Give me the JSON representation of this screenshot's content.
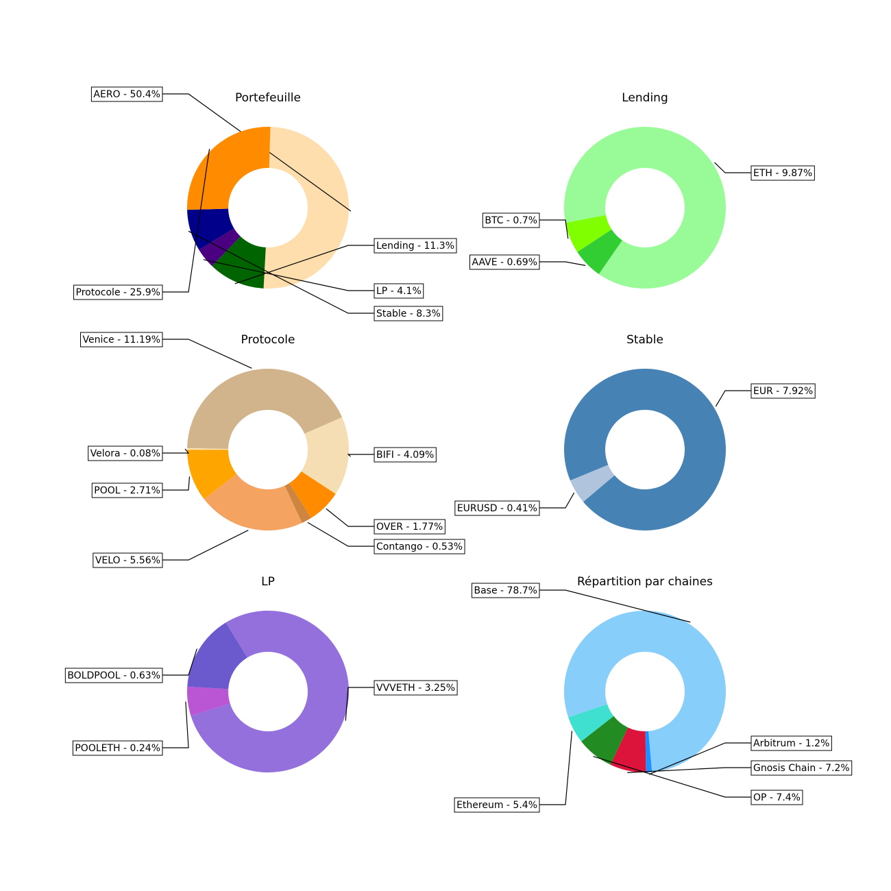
{
  "chart_data": [
    {
      "type": "donut",
      "title": "Portefeuille",
      "slices": [
        {
          "label": "AERO - 50.4%",
          "value": 50.4,
          "color": "#FFDEAD"
        },
        {
          "label": "Lending - 11.3%",
          "value": 11.3,
          "color": "#006400"
        },
        {
          "label": "LP - 4.1%",
          "value": 4.1,
          "color": "#4B0082"
        },
        {
          "label": "Stable - 8.3%",
          "value": 8.3,
          "color": "#00008B"
        },
        {
          "label": "Protocole - 25.9%",
          "value": 25.9,
          "color": "#FF8C00"
        }
      ]
    },
    {
      "type": "donut",
      "title": "Lending",
      "slices": [
        {
          "label": "ETH - 9.87%",
          "value": 9.87,
          "color": "#98FB98"
        },
        {
          "label": "AAVE - 0.69%",
          "value": 0.69,
          "color": "#32CD32"
        },
        {
          "label": "BTC - 0.7%",
          "value": 0.7,
          "color": "#7FFF00"
        }
      ]
    },
    {
      "type": "donut",
      "title": "Protocole",
      "slices": [
        {
          "label": "BIFI - 4.09%",
          "value": 4.09,
          "color": "#F5DEB3"
        },
        {
          "label": "OVER - 1.77%",
          "value": 1.77,
          "color": "#FF8C00"
        },
        {
          "label": "Contango - 0.53%",
          "value": 0.53,
          "color": "#CD853F"
        },
        {
          "label": "VELO - 5.56%",
          "value": 5.56,
          "color": "#F4A460"
        },
        {
          "label": "POOL - 2.71%",
          "value": 2.71,
          "color": "#FFA500"
        },
        {
          "label": "Velora - 0.08%",
          "value": 0.08,
          "color": "#FFE4B5"
        },
        {
          "label": "Venice - 11.19%",
          "value": 11.19,
          "color": "#D2B48C"
        }
      ]
    },
    {
      "type": "donut",
      "title": "Stable",
      "slices": [
        {
          "label": "EUR - 7.92%",
          "value": 7.92,
          "color": "#4682B4"
        },
        {
          "label": "EURUSD - 0.41%",
          "value": 0.41,
          "color": "#B0C4DE"
        }
      ]
    },
    {
      "type": "donut",
      "title": "LP",
      "slices": [
        {
          "label": "VVVETH - 3.25%",
          "value": 3.25,
          "color": "#9370DB"
        },
        {
          "label": "POOLETH - 0.24%",
          "value": 0.24,
          "color": "#BA55D3"
        },
        {
          "label": "BOLDPOOL - 0.63%",
          "value": 0.63,
          "color": "#6A5ACD"
        }
      ]
    },
    {
      "type": "donut",
      "title": "Répartition par chaines",
      "slices": [
        {
          "label": "Base - 78.7%",
          "value": 78.7,
          "color": "#87CEFA"
        },
        {
          "label": "Arbitrum - 1.2%",
          "value": 1.2,
          "color": "#1E90FF"
        },
        {
          "label": "Gnosis Chain - 7.2%",
          "value": 7.2,
          "color": "#DC143C"
        },
        {
          "label": "OP - 7.4%",
          "value": 7.4,
          "color": "#228B22"
        },
        {
          "label": "Ethereum - 5.4%",
          "value": 5.4,
          "color": "#40E0D0"
        }
      ]
    }
  ]
}
